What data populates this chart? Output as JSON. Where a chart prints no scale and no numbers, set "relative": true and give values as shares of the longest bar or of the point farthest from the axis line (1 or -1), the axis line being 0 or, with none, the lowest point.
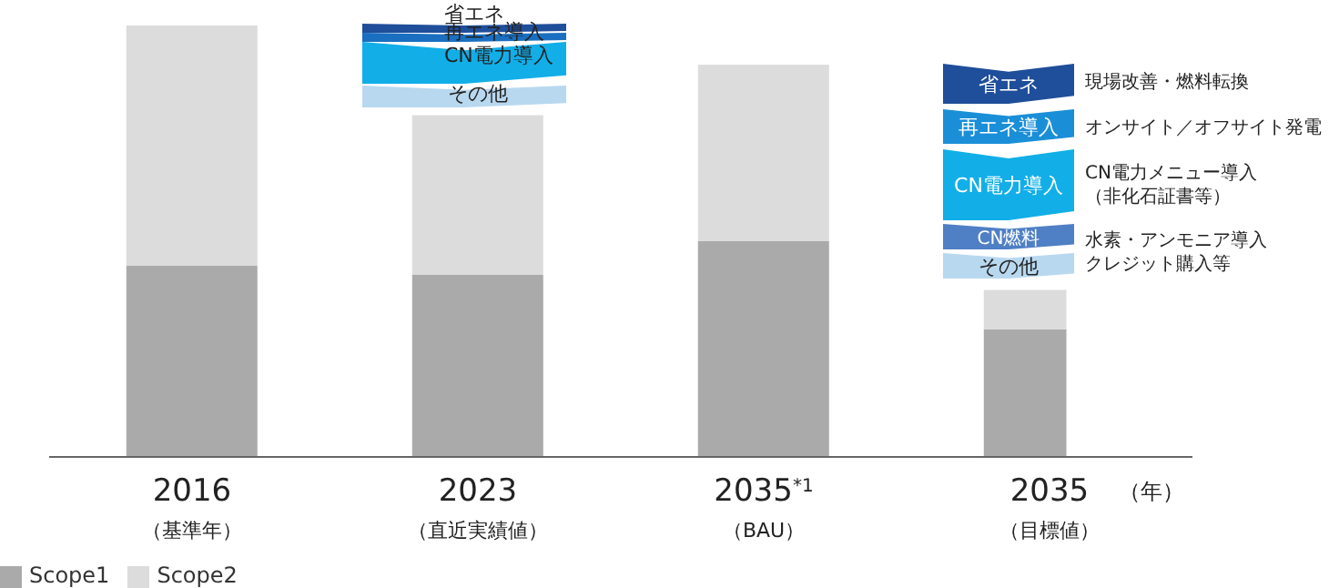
{
  "chart_data": {
    "type": "bar",
    "stacked": true,
    "relative": true,
    "categories": [
      "2016\n（基準年）",
      "2023\n（直近実績値）",
      "2035$^{*1}$\n（BAU）",
      "2035\n（目標値）"
    ],
    "xlabel": "（年）",
    "series": [
      {
        "name": "Scope1",
        "color": "#aaaaaa",
        "values": [
          0.443,
          0.422,
          0.5,
          0.296
        ]
      },
      {
        "name": "Scope2",
        "color": "#dcdcdc",
        "values": [
          0.557,
          0.37,
          0.409,
          0.091
        ]
      }
    ],
    "legend": "bottom left",
    "annotations": [
      "省エネ",
      "再エネ導入",
      "CN電力導入",
      "その他",
      "省エネ",
      "再エネ導入",
      "CN電力導入",
      "CN燃料",
      "その他",
      "現場改善・燃料転換",
      "オンサイト／オフサイト発電",
      "CN電力メニュー導入",
      "（非化石証書等）",
      "水素・アンモニア導入",
      "クレジット購入等"
    ]
  }
}
